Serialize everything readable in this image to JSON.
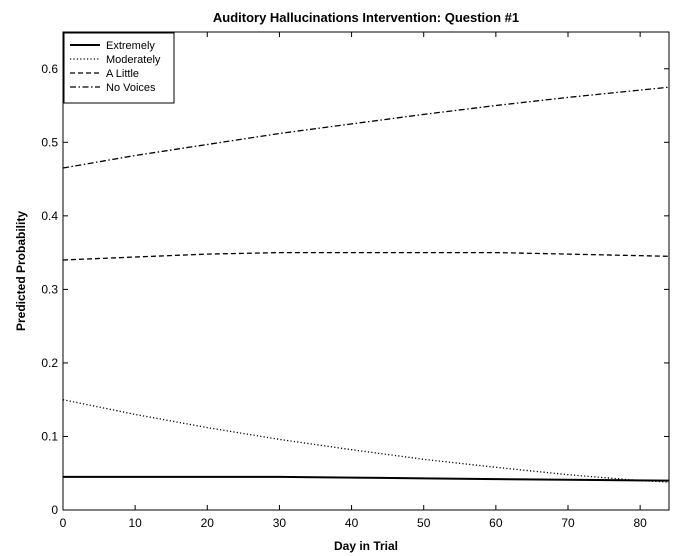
{
  "chart_data": {
    "type": "line",
    "title": "Auditory Hallucinations Intervention: Question #1",
    "xlabel": "Day in Trial",
    "ylabel": "Predicted Probability",
    "xlim": [
      0,
      84
    ],
    "ylim": [
      0,
      0.65
    ],
    "xticks": [
      0,
      10,
      20,
      30,
      40,
      50,
      60,
      70,
      80
    ],
    "yticks": [
      0,
      0.1,
      0.2,
      0.3,
      0.4,
      0.5,
      0.6
    ],
    "grid": false,
    "legend_position": "top-left",
    "series": [
      {
        "name": "Extremely",
        "style": "solid",
        "x": [
          0,
          10,
          20,
          30,
          40,
          50,
          60,
          70,
          84
        ],
        "y": [
          0.045,
          0.045,
          0.045,
          0.045,
          0.044,
          0.043,
          0.042,
          0.041,
          0.04
        ]
      },
      {
        "name": "Moderately",
        "style": "dotted",
        "x": [
          0,
          10,
          20,
          30,
          40,
          50,
          60,
          70,
          80,
          84
        ],
        "y": [
          0.15,
          0.13,
          0.112,
          0.096,
          0.082,
          0.069,
          0.058,
          0.048,
          0.04,
          0.038
        ]
      },
      {
        "name": "A Little",
        "style": "dashed",
        "x": [
          0,
          10,
          20,
          30,
          40,
          50,
          60,
          70,
          84
        ],
        "y": [
          0.34,
          0.344,
          0.348,
          0.35,
          0.35,
          0.35,
          0.35,
          0.348,
          0.345
        ]
      },
      {
        "name": "No Voices",
        "style": "dashdot",
        "x": [
          0,
          10,
          20,
          30,
          40,
          50,
          60,
          70,
          84
        ],
        "y": [
          0.465,
          0.482,
          0.497,
          0.512,
          0.525,
          0.538,
          0.55,
          0.561,
          0.575
        ]
      }
    ]
  }
}
